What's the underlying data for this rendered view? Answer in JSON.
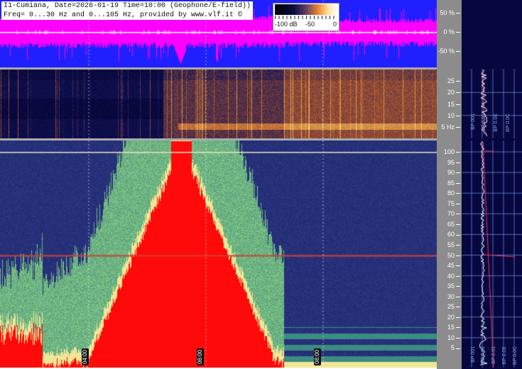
{
  "header": {
    "line1": "I1-Cumiana, Date=2026-01-19 Time=10:00 (Geophone/E-field))",
    "line2": "Freq= 0...30 Hz and 0...105 Hz, provided by www.vlf.it ©"
  },
  "colorbar": {
    "labels": [
      "-100 dB",
      "-50",
      "0"
    ],
    "range_db": [
      -100,
      0
    ]
  },
  "chart_data": [
    {
      "type": "line",
      "panel": "waveform amplitude",
      "y_ticks": [
        "50 %",
        "0 %",
        "-50 %"
      ],
      "ylim": [
        -100,
        100
      ],
      "colors": {
        "background": "#2020ff",
        "trace": "#ff00ff"
      }
    },
    {
      "type": "heatmap",
      "panel": "spectrogram 0-30 Hz",
      "y_ticks": [
        "25",
        "20",
        "15",
        "10",
        "5 Hz"
      ],
      "ylim": [
        0,
        30
      ]
    },
    {
      "type": "heatmap",
      "panel": "spectrogram 0-105 Hz",
      "y_ticks": [
        "100",
        "95",
        "90",
        "85",
        "80",
        "75",
        "70",
        "65",
        "60",
        "55",
        "50",
        "45",
        "40",
        "35",
        "30",
        "25",
        "20",
        "15",
        "10",
        "5"
      ],
      "ylim": [
        0,
        105
      ],
      "x_ticks": [
        "04:00",
        "06:00",
        "08:00"
      ]
    }
  ],
  "side_panel": {
    "labels_top": [
      "BP 001",
      "BP 0.01",
      "BP 0.0E",
      "BP 0.0C"
    ],
    "labels_bottom": [
      "BP 001",
      "BP 0.01",
      "BP 0.01",
      "BP 0.0E",
      "BP 0.0C"
    ]
  }
}
